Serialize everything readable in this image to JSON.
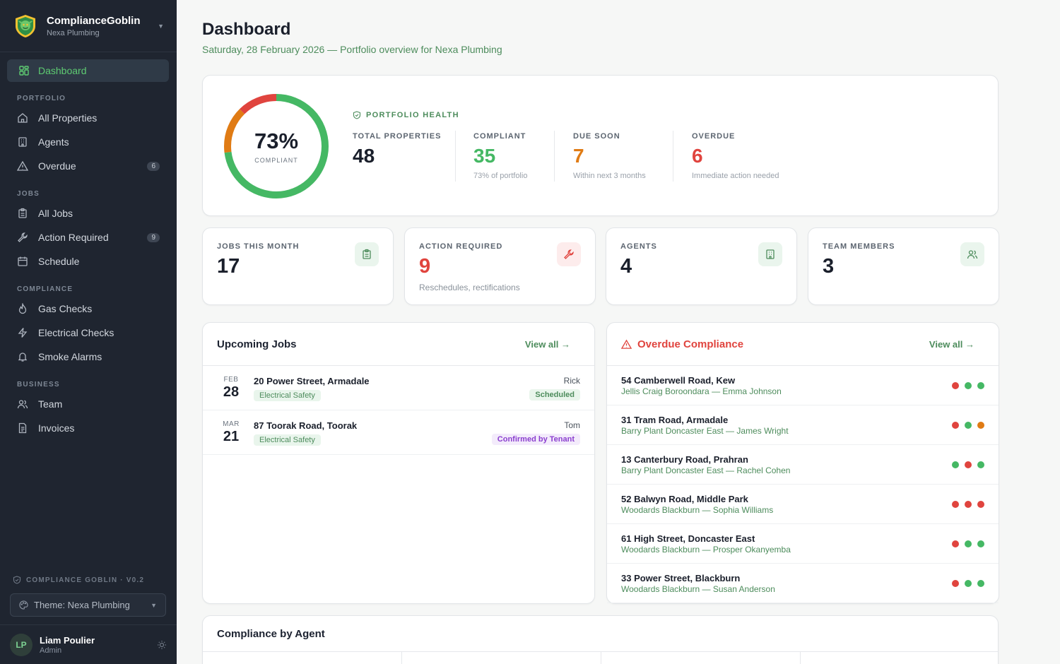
{
  "brand": {
    "name": "ComplianceGoblin",
    "org": "Nexa Plumbing"
  },
  "nav": {
    "dashboard": "Dashboard",
    "portfolio_label": "PORTFOLIO",
    "all_properties": "All Properties",
    "agents": "Agents",
    "overdue": "Overdue",
    "overdue_count": "6",
    "jobs_label": "JOBS",
    "all_jobs": "All Jobs",
    "action_required": "Action Required",
    "action_required_count": "9",
    "schedule": "Schedule",
    "compliance_label": "COMPLIANCE",
    "gas_checks": "Gas Checks",
    "electrical_checks": "Electrical Checks",
    "smoke_alarms": "Smoke Alarms",
    "business_label": "BUSINESS",
    "team": "Team",
    "invoices": "Invoices"
  },
  "footer": {
    "version": "COMPLIANCE GOBLIN · V0.2",
    "theme": "Theme: Nexa Plumbing",
    "user_name": "Liam Poulier",
    "user_role": "Admin",
    "user_initials": "LP"
  },
  "page": {
    "title": "Dashboard",
    "subtitle": "Saturday, 28 February 2026 — Portfolio overview for Nexa Plumbing"
  },
  "health": {
    "percent": "73%",
    "percent_label": "COMPLIANT",
    "compliant_fraction": 0.73,
    "due_soon_fraction": 0.146,
    "overdue_fraction": 0.125,
    "label": "PORTFOLIO HEALTH",
    "stats": [
      {
        "label": "TOTAL PROPERTIES",
        "value": "48",
        "note": ""
      },
      {
        "label": "COMPLIANT",
        "value": "35",
        "note": "73% of portfolio"
      },
      {
        "label": "DUE SOON",
        "value": "7",
        "note": "Within next 3 months"
      },
      {
        "label": "OVERDUE",
        "value": "6",
        "note": "Immediate action needed"
      }
    ]
  },
  "kpis": [
    {
      "label": "JOBS THIS MONTH",
      "value": "17",
      "note": ""
    },
    {
      "label": "ACTION REQUIRED",
      "value": "9",
      "note": "Reschedules, rectifications"
    },
    {
      "label": "AGENTS",
      "value": "4",
      "note": ""
    },
    {
      "label": "TEAM MEMBERS",
      "value": "3",
      "note": ""
    }
  ],
  "upcoming": {
    "title": "Upcoming Jobs",
    "view_all": "View all →",
    "rows": [
      {
        "month": "FEB",
        "day": "28",
        "address": "20 Power Street, Armadale",
        "type": "Electrical Safety",
        "tech": "Rick",
        "status": "Scheduled"
      },
      {
        "month": "MAR",
        "day": "21",
        "address": "87 Toorak Road, Toorak",
        "type": "Electrical Safety",
        "tech": "Tom",
        "status": "Confirmed by Tenant"
      }
    ]
  },
  "overdue": {
    "title": "Overdue Compliance",
    "view_all": "View all →",
    "rows": [
      {
        "address": "54 Camberwell Road, Kew",
        "sub": "Jellis Craig Boroondara — Emma Johnson",
        "dots": [
          "red",
          "green",
          "green"
        ]
      },
      {
        "address": "31 Tram Road, Armadale",
        "sub": "Barry Plant Doncaster East — James Wright",
        "dots": [
          "red",
          "green",
          "orange"
        ]
      },
      {
        "address": "13 Canterbury Road, Prahran",
        "sub": "Barry Plant Doncaster East — Rachel Cohen",
        "dots": [
          "green",
          "red",
          "green"
        ]
      },
      {
        "address": "52 Balwyn Road, Middle Park",
        "sub": "Woodards Blackburn — Sophia Williams",
        "dots": [
          "red",
          "red",
          "red"
        ]
      },
      {
        "address": "61 High Street, Doncaster East",
        "sub": "Woodards Blackburn — Prosper Okanyemba",
        "dots": [
          "red",
          "green",
          "green"
        ]
      },
      {
        "address": "33 Power Street, Blackburn",
        "sub": "Woodards Blackburn — Susan Anderson",
        "dots": [
          "red",
          "green",
          "green"
        ]
      }
    ]
  },
  "agent_section": {
    "title": "Compliance by Agent"
  },
  "colors": {
    "green": "#45b864",
    "red": "#e0443e",
    "orange": "#e07b14",
    "brand_green": "#4d8c5c",
    "sidebar": "#1f2530"
  }
}
